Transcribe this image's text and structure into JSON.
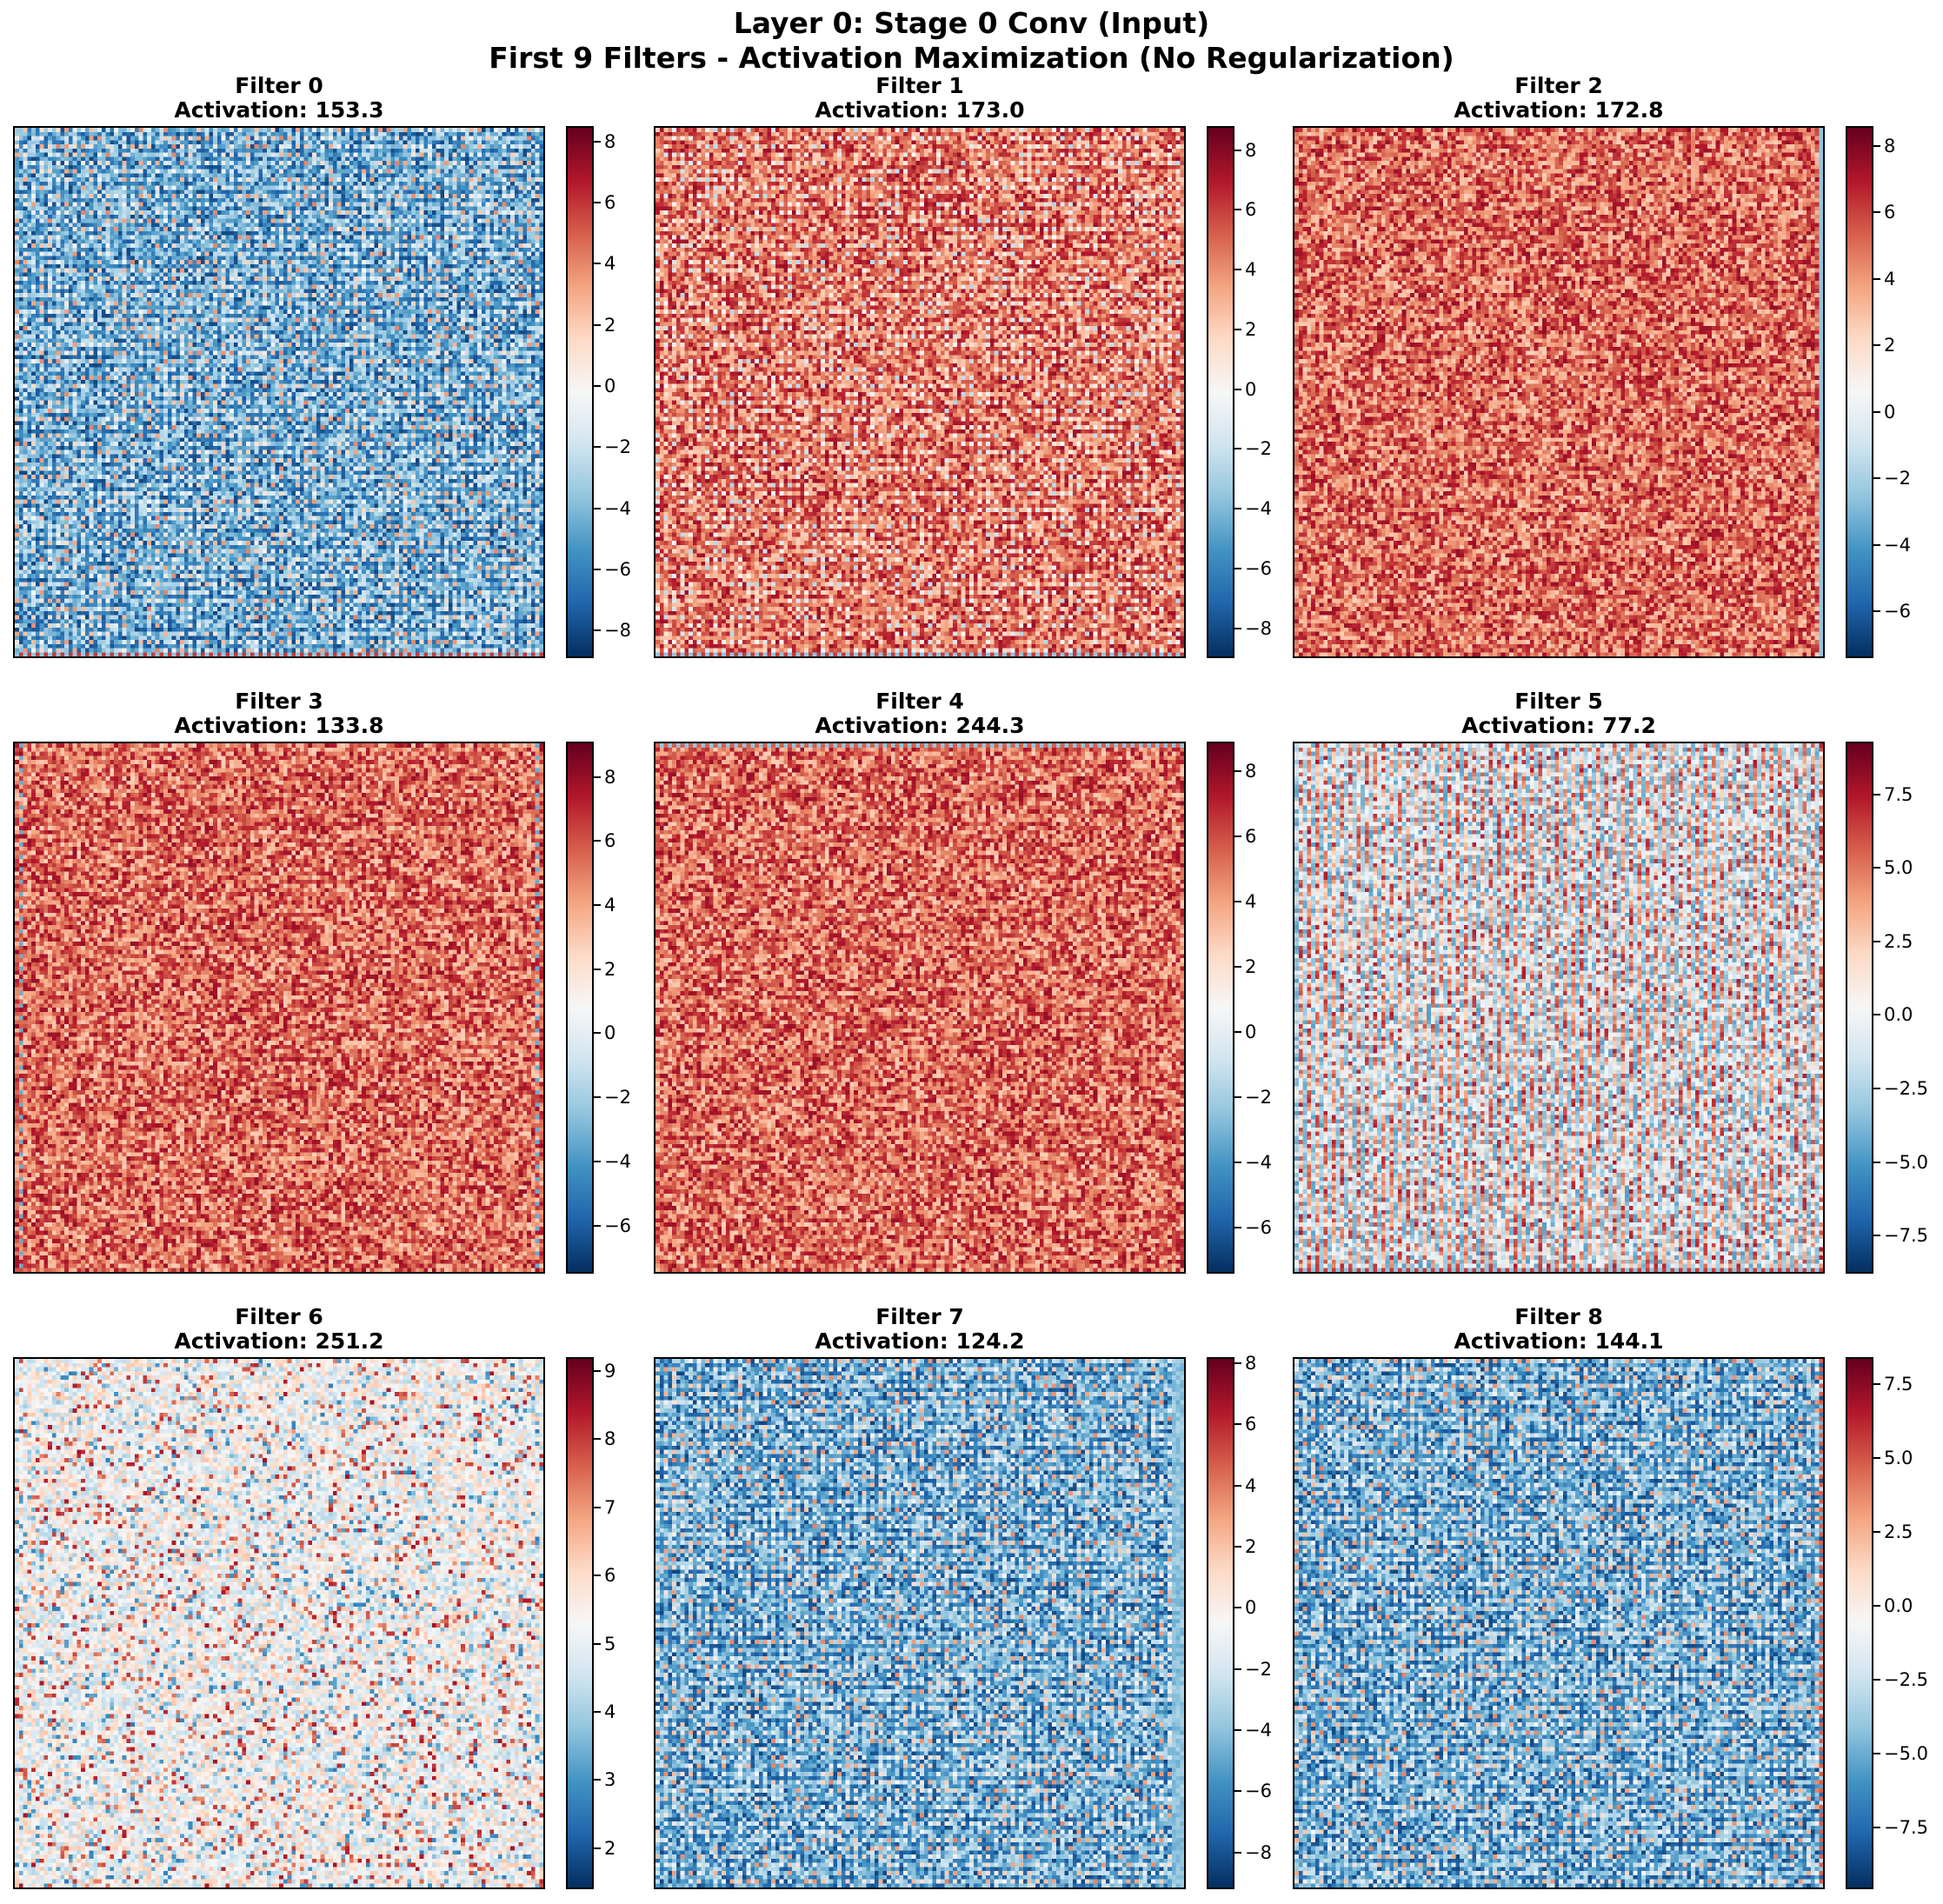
{
  "figure": {
    "title_line1": "Layer 0: Stage 0 Conv (Input)",
    "title_line2": "First 9 Filters - Activation Maximization (No Regularization)"
  },
  "colormap": {
    "name": "RdBu_r",
    "stops": [
      "#053061",
      "#2166ac",
      "#4393c3",
      "#92c5de",
      "#d1e5f0",
      "#f7f7f7",
      "#fddbc7",
      "#f4a582",
      "#d6604d",
      "#b2182b",
      "#67001f"
    ]
  },
  "chart_data": [
    {
      "type": "heatmap",
      "title_line1": "Filter 0",
      "title_line2": "Activation: 153.3",
      "grid_size": 128,
      "pattern": "checker",
      "edge": "bottom",
      "vmin": -8.9,
      "vmax": 8.5,
      "ticks": [
        -8,
        -6,
        -4,
        -2,
        0,
        2,
        4,
        6,
        8
      ],
      "tick_labels": [
        "−8",
        "−6",
        "−4",
        "−2",
        "0",
        "2",
        "4",
        "6",
        "8"
      ],
      "dominant_color": "blue"
    },
    {
      "type": "heatmap",
      "title_line1": "Filter 1",
      "title_line2": "Activation: 173.0",
      "grid_size": 128,
      "pattern": "checker",
      "edge": "bottom",
      "vmin": -9.0,
      "vmax": 8.8,
      "ticks": [
        -8,
        -6,
        -4,
        -2,
        0,
        2,
        4,
        6,
        8
      ],
      "tick_labels": [
        "−8",
        "−6",
        "−4",
        "−2",
        "0",
        "2",
        "4",
        "6",
        "8"
      ],
      "dominant_color": "red"
    },
    {
      "type": "heatmap",
      "title_line1": "Filter 2",
      "title_line2": "Activation: 172.8",
      "grid_size": 128,
      "pattern": "noise",
      "edge": "right",
      "vmin": -7.4,
      "vmax": 8.6,
      "ticks": [
        -6,
        -4,
        -2,
        0,
        2,
        4,
        6,
        8
      ],
      "tick_labels": [
        "−6",
        "−4",
        "−2",
        "0",
        "2",
        "4",
        "6",
        "8"
      ],
      "dominant_color": "red"
    },
    {
      "type": "heatmap",
      "title_line1": "Filter 3",
      "title_line2": "Activation: 133.8",
      "grid_size": 128,
      "pattern": "noise",
      "edge": "frame",
      "vmin": -7.5,
      "vmax": 9.1,
      "ticks": [
        -6,
        -4,
        -2,
        0,
        2,
        4,
        6,
        8
      ],
      "tick_labels": [
        "−6",
        "−4",
        "−2",
        "0",
        "2",
        "4",
        "6",
        "8"
      ],
      "dominant_color": "red"
    },
    {
      "type": "heatmap",
      "title_line1": "Filter 4",
      "title_line2": "Activation: 244.3",
      "grid_size": 128,
      "pattern": "noise",
      "edge": "top",
      "vmin": -7.4,
      "vmax": 8.9,
      "ticks": [
        -6,
        -4,
        -2,
        0,
        2,
        4,
        6,
        8
      ],
      "tick_labels": [
        "−6",
        "−4",
        "−2",
        "0",
        "2",
        "4",
        "6",
        "8"
      ],
      "dominant_color": "red"
    },
    {
      "type": "heatmap",
      "title_line1": "Filter 5",
      "title_line2": "Activation: 77.2",
      "grid_size": 128,
      "pattern": "stripes",
      "edge": "bottom",
      "vmin": -8.8,
      "vmax": 9.3,
      "ticks": [
        -7.5,
        -5.0,
        -2.5,
        0.0,
        2.5,
        5.0,
        7.5
      ],
      "tick_labels": [
        "−7.5",
        "−5.0",
        "−2.5",
        "0.0",
        "2.5",
        "5.0",
        "7.5"
      ],
      "dominant_color": "mixed"
    },
    {
      "type": "heatmap",
      "title_line1": "Filter 6",
      "title_line2": "Activation: 251.2",
      "grid_size": 128,
      "pattern": "pale-noise",
      "edge": "none",
      "vmin": 1.4,
      "vmax": 9.2,
      "ticks": [
        2,
        3,
        4,
        5,
        6,
        7,
        8,
        9
      ],
      "tick_labels": [
        "2",
        "3",
        "4",
        "5",
        "6",
        "7",
        "8",
        "9"
      ],
      "dominant_color": "pale"
    },
    {
      "type": "heatmap",
      "title_line1": "Filter 7",
      "title_line2": "Activation: 124.2",
      "grid_size": 128,
      "pattern": "checker",
      "edge": "right-blue",
      "vmin": -9.2,
      "vmax": 8.2,
      "ticks": [
        -8,
        -6,
        -4,
        -2,
        0,
        2,
        4,
        6,
        8
      ],
      "tick_labels": [
        "−8",
        "−6",
        "−4",
        "−2",
        "0",
        "2",
        "4",
        "6",
        "8"
      ],
      "dominant_color": "blue"
    },
    {
      "type": "heatmap",
      "title_line1": "Filter 8",
      "title_line2": "Activation: 144.1",
      "grid_size": 128,
      "pattern": "checker",
      "edge": "right-red",
      "vmin": -9.6,
      "vmax": 8.4,
      "ticks": [
        -7.5,
        -5.0,
        -2.5,
        0.0,
        2.5,
        5.0,
        7.5
      ],
      "tick_labels": [
        "−7.5",
        "−5.0",
        "−2.5",
        "0.0",
        "2.5",
        "5.0",
        "7.5"
      ],
      "dominant_color": "blue"
    }
  ]
}
